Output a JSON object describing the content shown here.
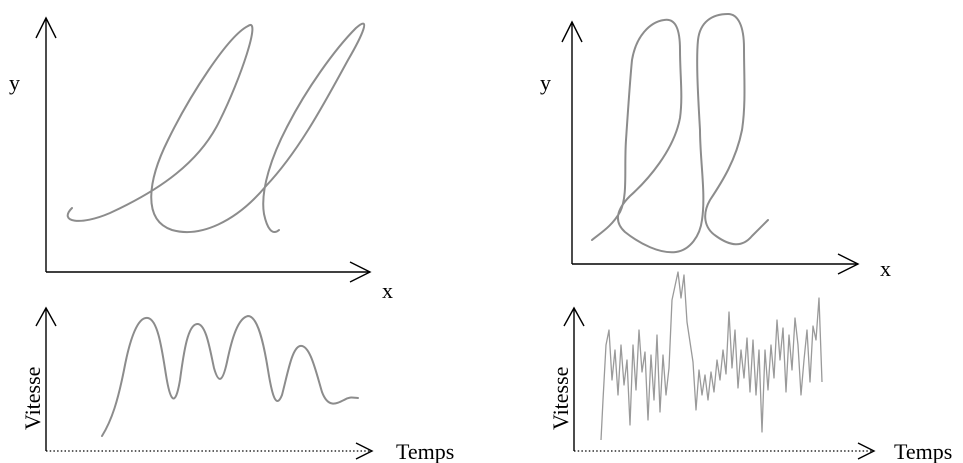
{
  "left_panel": {
    "y_label": "y",
    "x_label": "x",
    "speed_label": "Vitesse",
    "time_label": "Temps"
  },
  "right_panel": {
    "y_label": "y",
    "x_label": "x",
    "speed_label": "Vitesse",
    "time_label": "Temps"
  },
  "colors": {
    "trace": "#8c8c8c",
    "axis": "#000000"
  }
}
